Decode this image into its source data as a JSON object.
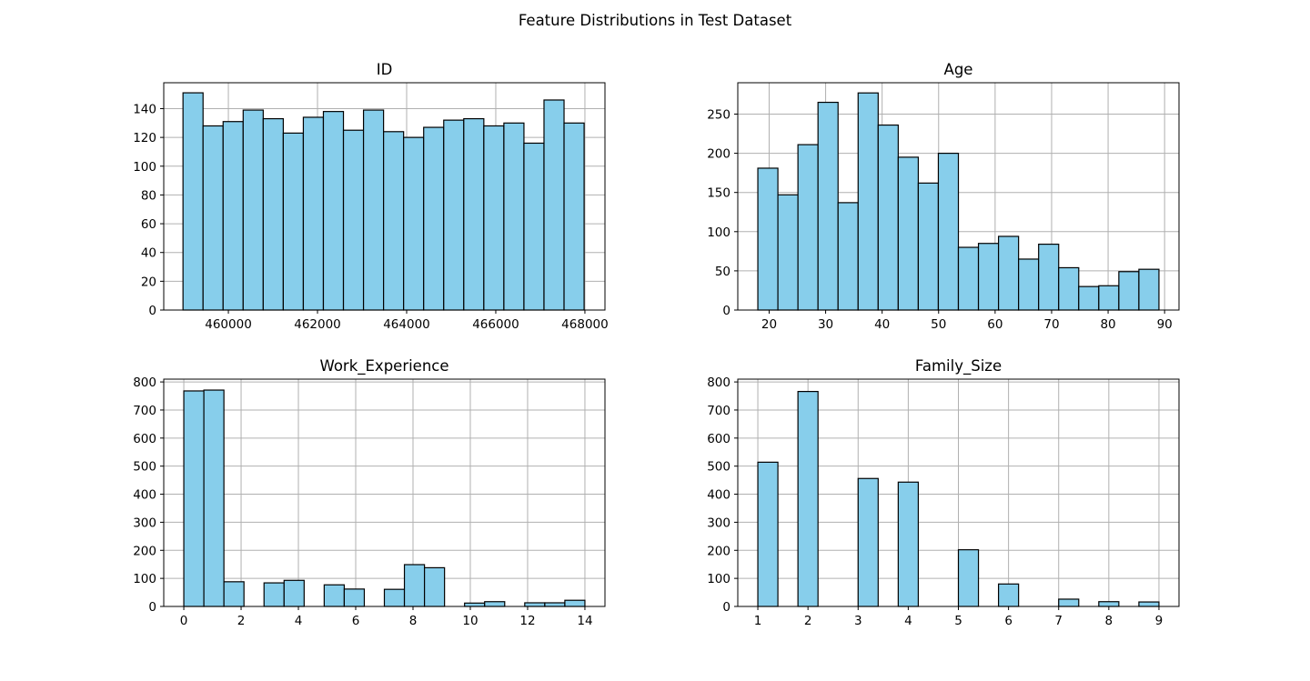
{
  "figure": {
    "title": "Feature Distributions in Test Dataset"
  },
  "chart_data": [
    {
      "type": "bar",
      "title": "ID",
      "xlabel": "",
      "ylabel": "",
      "grid": true,
      "bar_color": "#87ceeb",
      "edge_color": "#000000",
      "xlim": [
        458550,
        468450
      ],
      "ylim": [
        0,
        158
      ],
      "xticks": [
        460000,
        462000,
        464000,
        466000,
        468000
      ],
      "xtick_labels": [
        "460000",
        "462000",
        "464000",
        "466000",
        "468000"
      ],
      "yticks": [
        0,
        20,
        40,
        60,
        80,
        100,
        120,
        140
      ],
      "ytick_labels": [
        "0",
        "20",
        "40",
        "60",
        "80",
        "100",
        "120",
        "140"
      ],
      "bin_edges": [
        458982,
        459432,
        459882,
        460332,
        460782,
        461232,
        461682,
        462132,
        462582,
        463032,
        463482,
        463932,
        464382,
        464832,
        465282,
        465732,
        466182,
        466632,
        467082,
        467532,
        467982
      ],
      "values": [
        151,
        128,
        131,
        139,
        133,
        123,
        134,
        138,
        125,
        139,
        124,
        120,
        127,
        132,
        133,
        128,
        130,
        116,
        146,
        130
      ]
    },
    {
      "type": "bar",
      "title": "Age",
      "xlabel": "",
      "ylabel": "",
      "grid": true,
      "bar_color": "#87ceeb",
      "edge_color": "#000000",
      "xlim": [
        14.45,
        92.55
      ],
      "ylim": [
        0,
        290
      ],
      "xticks": [
        20,
        30,
        40,
        50,
        60,
        70,
        80,
        90
      ],
      "xtick_labels": [
        "20",
        "30",
        "40",
        "50",
        "60",
        "70",
        "80",
        "90"
      ],
      "yticks": [
        0,
        50,
        100,
        150,
        200,
        250
      ],
      "ytick_labels": [
        "0",
        "50",
        "100",
        "150",
        "200",
        "250"
      ],
      "bin_edges": [
        18,
        21.55,
        25.1,
        28.65,
        32.2,
        35.75,
        39.3,
        42.85,
        46.4,
        49.95,
        53.5,
        57.05,
        60.6,
        64.15,
        67.7,
        71.25,
        74.8,
        78.35,
        81.9,
        85.45,
        89
      ],
      "values": [
        181,
        147,
        211,
        265,
        137,
        277,
        236,
        195,
        162,
        200,
        80,
        85,
        94,
        65,
        84,
        54,
        30,
        31,
        49,
        52
      ]
    },
    {
      "type": "bar",
      "title": "Work_Experience",
      "xlabel": "",
      "ylabel": "",
      "grid": true,
      "bar_color": "#87ceeb",
      "edge_color": "#000000",
      "xlim": [
        -0.7,
        14.7
      ],
      "ylim": [
        0,
        810
      ],
      "xticks": [
        0,
        2,
        4,
        6,
        8,
        10,
        12,
        14
      ],
      "xtick_labels": [
        "0",
        "2",
        "4",
        "6",
        "8",
        "10",
        "12",
        "14"
      ],
      "yticks": [
        0,
        100,
        200,
        300,
        400,
        500,
        600,
        700,
        800
      ],
      "ytick_labels": [
        "0",
        "100",
        "200",
        "300",
        "400",
        "500",
        "600",
        "700",
        "800"
      ],
      "bin_edges": [
        0,
        0.7,
        1.4,
        2.1,
        2.8,
        3.5,
        4.2,
        4.9,
        5.6,
        6.3,
        7.0,
        7.7,
        8.4,
        9.1,
        9.8,
        10.5,
        11.2,
        11.9,
        12.6,
        13.3,
        14.0
      ],
      "values": [
        768,
        771,
        88,
        0,
        84,
        93,
        0,
        77,
        62,
        0,
        61,
        149,
        138,
        0,
        12,
        17,
        0,
        13,
        13,
        22
      ]
    },
    {
      "type": "bar",
      "title": "Family_Size",
      "xlabel": "",
      "ylabel": "",
      "grid": true,
      "bar_color": "#87ceeb",
      "edge_color": "#000000",
      "xlim": [
        0.6,
        9.4
      ],
      "ylim": [
        0,
        810
      ],
      "xticks": [
        1,
        2,
        3,
        4,
        5,
        6,
        7,
        8,
        9
      ],
      "xtick_labels": [
        "1",
        "2",
        "3",
        "4",
        "5",
        "6",
        "7",
        "8",
        "9"
      ],
      "yticks": [
        0,
        100,
        200,
        300,
        400,
        500,
        600,
        700,
        800
      ],
      "ytick_labels": [
        "0",
        "100",
        "200",
        "300",
        "400",
        "500",
        "600",
        "700",
        "800"
      ],
      "bin_edges": [
        1,
        1.4,
        1.8,
        2.2,
        2.6,
        3.0,
        3.4,
        3.8,
        4.2,
        4.6,
        5.0,
        5.4,
        5.8,
        6.2,
        6.6,
        7.0,
        7.4,
        7.8,
        8.2,
        8.6,
        9.0
      ],
      "values": [
        514,
        0,
        766,
        0,
        0,
        456,
        0,
        443,
        0,
        0,
        202,
        0,
        80,
        0,
        0,
        26,
        0,
        17,
        0,
        16
      ]
    }
  ]
}
